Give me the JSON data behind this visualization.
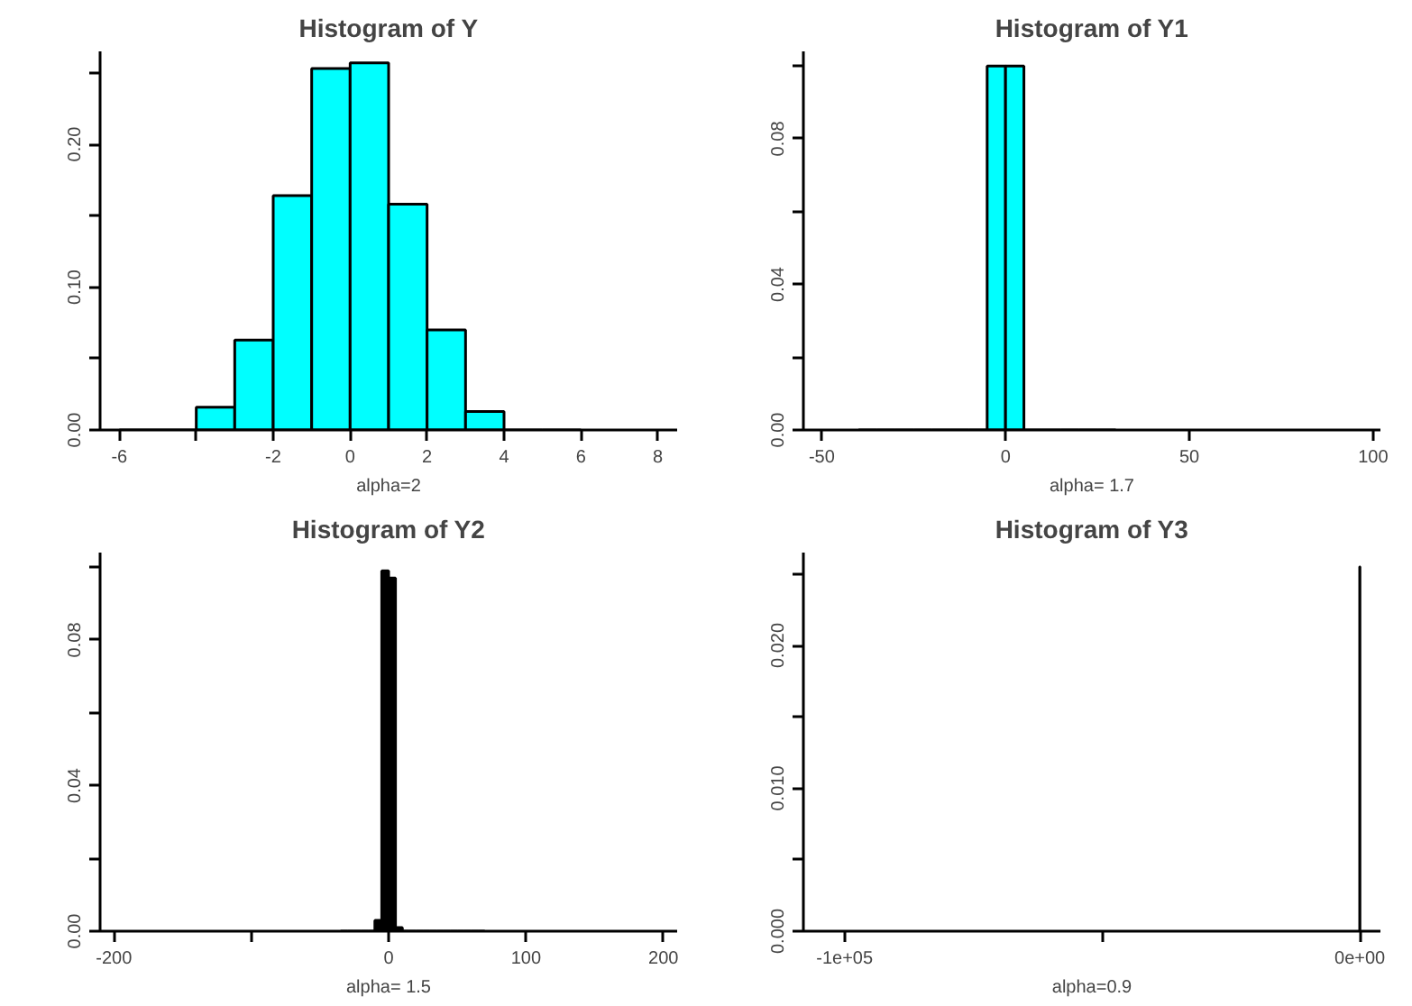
{
  "chart_data": [
    {
      "type": "histogram",
      "title": "Histogram of Y",
      "xlabel": "alpha=2",
      "color": "#00ffff",
      "bins": [
        -6,
        -5,
        -4,
        -3,
        -2,
        -1,
        0,
        1,
        2,
        3,
        4,
        5,
        6
      ],
      "values": [
        0,
        0,
        0.016,
        0.063,
        0.164,
        0.253,
        0.257,
        0.158,
        0.07,
        0.013,
        0,
        0
      ],
      "xlim": [
        -6.5,
        8.5
      ],
      "ylim": [
        0,
        0.265
      ],
      "xticks": [
        -6,
        {
          "value": -4,
          "label": null
        },
        -2,
        0,
        2,
        4,
        6,
        8
      ],
      "yticks": [
        {
          "value": 0,
          "label": "0.00"
        },
        {
          "value": 0.05,
          "label": null
        },
        {
          "value": 0.1,
          "label": "0.10"
        },
        {
          "value": 0.15,
          "label": null
        },
        {
          "value": 0.2,
          "label": "0.20"
        },
        {
          "value": 0.25,
          "label": null
        }
      ]
    },
    {
      "type": "histogram",
      "title": "Histogram of Y1",
      "xlabel": "alpha= 1.7",
      "color": "#00ffff",
      "bins": [
        -40,
        -35,
        -30,
        -25,
        -20,
        -15,
        -10,
        -5,
        0,
        5,
        10,
        15,
        20,
        25,
        30
      ],
      "values": [
        0,
        0,
        0,
        0,
        0,
        0,
        0,
        0.1,
        0.1,
        0,
        0,
        0,
        0,
        0
      ],
      "xlim": [
        -55,
        102
      ],
      "ylim": [
        0,
        0.104
      ],
      "xticks": [
        -50,
        0,
        50,
        100
      ],
      "yticks": [
        {
          "value": 0,
          "label": "0.00"
        },
        {
          "value": 0.02,
          "label": null
        },
        {
          "value": 0.04,
          "label": "0.04"
        },
        {
          "value": 0.06,
          "label": null
        },
        {
          "value": 0.08,
          "label": "0.08"
        },
        {
          "value": 0.1,
          "label": null
        }
      ]
    },
    {
      "type": "histogram",
      "title": "Histogram of Y2",
      "xlabel": "alpha= 1.5",
      "color": "#000000",
      "bins": [
        -35,
        -30,
        -25,
        -20,
        -15,
        -10,
        -5,
        0,
        5,
        10,
        15,
        20,
        25,
        30,
        35,
        40,
        45,
        50,
        55,
        60,
        65,
        70
      ],
      "values": [
        0,
        0,
        0,
        0,
        0,
        0.003,
        0.099,
        0.097,
        0.001,
        0,
        0,
        0,
        0,
        0,
        0,
        0,
        0,
        0,
        0,
        0,
        0
      ],
      "xlim": [
        -210,
        210
      ],
      "ylim": [
        0,
        0.104
      ],
      "xticks": [
        -200,
        {
          "value": -100,
          "label": null
        },
        0,
        100,
        200
      ],
      "yticks": [
        {
          "value": 0,
          "label": "0.00"
        },
        {
          "value": 0.02,
          "label": null
        },
        {
          "value": 0.04,
          "label": "0.04"
        },
        {
          "value": 0.06,
          "label": null
        },
        {
          "value": 0.08,
          "label": "0.08"
        },
        {
          "value": 0.1,
          "label": null
        }
      ]
    },
    {
      "type": "histogram",
      "title": "Histogram of Y3",
      "xlabel": "alpha=0.9",
      "color": "#00ffff",
      "bins": [
        -20,
        20
      ],
      "values": [
        0.0255
      ],
      "xlim": [
        -108000,
        4000
      ],
      "ylim": [
        0,
        0.0265
      ],
      "xticks": [
        {
          "value": -100000,
          "label": "-1e+05"
        },
        {
          "value": -50000,
          "label": null
        },
        {
          "value": 0,
          "label": "0e+00"
        }
      ],
      "yticks": [
        {
          "value": 0,
          "label": "0.000"
        },
        {
          "value": 0.005,
          "label": null
        },
        {
          "value": 0.01,
          "label": "0.010"
        },
        {
          "value": 0.015,
          "label": null
        },
        {
          "value": 0.02,
          "label": "0.020"
        },
        {
          "value": 0.025,
          "label": null
        }
      ]
    }
  ]
}
